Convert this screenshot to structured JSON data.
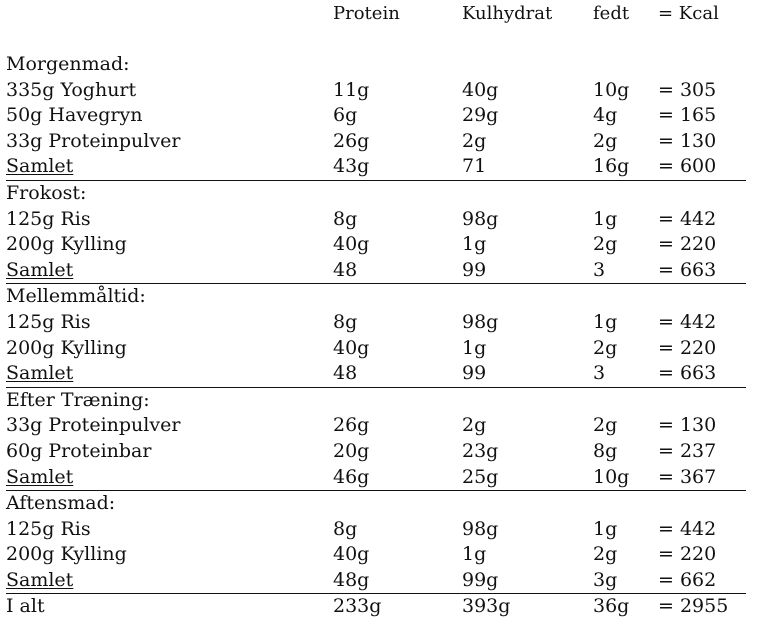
{
  "headers": {
    "protein": "Protein",
    "carb": "Kulhydrat",
    "fat": "fedt",
    "kcal": "= Kcal"
  },
  "sections": [
    {
      "title": "Morgenmad:",
      "items": [
        {
          "name": "335g Yoghurt",
          "protein": "11g",
          "carb": "40g",
          "fat": "10g",
          "kcal": "= 305"
        },
        {
          "name": "50g Havegryn",
          "protein": "6g",
          "carb": "29g",
          "fat": "4g",
          "kcal": "= 165"
        },
        {
          "name": "33g Proteinpulver",
          "protein": "26g",
          "carb": "2g",
          "fat": "2g",
          "kcal": "= 130"
        }
      ],
      "total": {
        "name": "Samlet",
        "protein": "43g",
        "carb": "71",
        "fat": "16g",
        "kcal": "= 600"
      }
    },
    {
      "title": "Frokost:",
      "items": [
        {
          "name": "125g Ris",
          "protein": "8g",
          "carb": "98g",
          "fat": "1g",
          "kcal": "= 442"
        },
        {
          "name": "200g Kylling",
          "protein": "40g",
          "carb": "1g",
          "fat": "2g",
          "kcal": "= 220"
        }
      ],
      "total": {
        "name": "Samlet",
        "protein": "48",
        "carb": "99",
        "fat": "3",
        "kcal": "= 663"
      }
    },
    {
      "title": "Mellemmåltid:",
      "items": [
        {
          "name": "125g Ris",
          "protein": "8g",
          "carb": "98g",
          "fat": "1g",
          "kcal": "= 442"
        },
        {
          "name": "200g Kylling",
          "protein": "40g",
          "carb": "1g",
          "fat": "2g",
          "kcal": "= 220"
        }
      ],
      "total": {
        "name": "Samlet",
        "protein": "48",
        "carb": "99",
        "fat": "3",
        "kcal": "= 663"
      }
    },
    {
      "title": "Efter Træning:",
      "items": [
        {
          "name": "33g Proteinpulver",
          "protein": "26g",
          "carb": "2g",
          "fat": "2g",
          "kcal": "= 130"
        },
        {
          "name": "60g Proteinbar",
          "protein": "20g",
          "carb": "23g",
          "fat": "8g",
          "kcal": "= 237"
        }
      ],
      "total": {
        "name": "Samlet",
        "protein": "46g",
        "carb": "25g",
        "fat": "10g",
        "kcal": "= 367"
      }
    },
    {
      "title": "Aftensmad:",
      "items": [
        {
          "name": "125g Ris",
          "protein": "8g",
          "carb": "98g",
          "fat": "1g",
          "kcal": "= 442"
        },
        {
          "name": "200g Kylling",
          "protein": "40g",
          "carb": "1g",
          "fat": "2g",
          "kcal": "= 220"
        }
      ],
      "total": {
        "name": "Samlet",
        "protein": "48g",
        "carb": "99g",
        "fat": "3g",
        "kcal": "= 662"
      }
    }
  ],
  "grand_total": {
    "name": "I alt",
    "protein": "233g",
    "carb": "393g",
    "fat": "36g",
    "kcal": "= 2955"
  }
}
